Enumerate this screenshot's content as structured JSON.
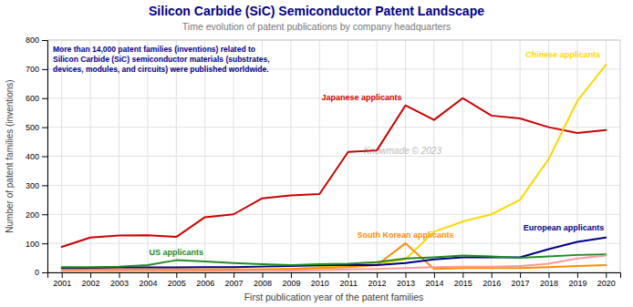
{
  "chart_data": {
    "type": "line",
    "title": "Silicon Carbide (SiC) Semiconductor Patent Landscape",
    "subtitle": "Time evolution of patent publications by company headquarters",
    "x_label": "First publication year of the patent families",
    "y_label": "Number of patent families (inventions)",
    "annotations": [
      "Knowmade © 2023",
      "More than 14,000 patent families (inventions) related to\nSilicon Carbide (SiC) semiconductor materials (substrates,\ndevices, modules, and circuits) were published worldwide."
    ],
    "x": [
      2001,
      2002,
      2003,
      2004,
      2005,
      2006,
      2007,
      2008,
      2009,
      2010,
      2011,
      2012,
      2013,
      2014,
      2015,
      2016,
      2017,
      2018,
      2019,
      2020
    ],
    "series": [
      {
        "name": "Japanese applicants",
        "color": "#cc0000",
        "values": [
          88,
          120,
          127,
          128,
          122,
          190,
          200,
          255,
          265,
          270,
          415,
          420,
          575,
          525,
          600,
          540,
          530,
          500,
          480,
          490
        ]
      },
      {
        "name": "Chinese applicants",
        "color": "#ffd700",
        "values": [
          5,
          5,
          5,
          5,
          5,
          5,
          8,
          10,
          12,
          18,
          22,
          30,
          45,
          140,
          175,
          200,
          250,
          390,
          590,
          715
        ]
      },
      {
        "name": "South Korean applicants",
        "color": "#ff8c00",
        "values": [
          8,
          10,
          10,
          10,
          10,
          10,
          10,
          10,
          12,
          15,
          18,
          25,
          100,
          12,
          15,
          15,
          15,
          18,
          22,
          25
        ]
      },
      {
        "name": "European applicants",
        "color": "#00008b",
        "values": [
          15,
          16,
          17,
          17,
          17,
          18,
          18,
          20,
          22,
          24,
          26,
          25,
          32,
          45,
          52,
          52,
          52,
          80,
          105,
          120
        ]
      },
      {
        "name": "US applicants",
        "color": "#228b22",
        "values": [
          18,
          18,
          20,
          25,
          42,
          38,
          32,
          28,
          25,
          28,
          30,
          35,
          48,
          52,
          58,
          55,
          50,
          55,
          60,
          62
        ]
      },
      {
        "color": "#ff9999",
        "values": [
          5,
          5,
          5,
          5,
          5,
          5,
          5,
          6,
          6,
          8,
          10,
          12,
          15,
          18,
          20,
          20,
          22,
          30,
          48,
          58
        ]
      }
    ],
    "xlim": [
      2000.5,
      2020.5
    ],
    "xticks": [
      2001,
      2002,
      2003,
      2004,
      2005,
      2006,
      2007,
      2008,
      2009,
      2010,
      2011,
      2012,
      2013,
      2014,
      2015,
      2016,
      2017,
      2018,
      2019,
      2020
    ],
    "ylim": [
      0,
      800
    ],
    "yticks": [
      0,
      100,
      200,
      300,
      400,
      500,
      600,
      700,
      800
    ],
    "grid": true
  }
}
